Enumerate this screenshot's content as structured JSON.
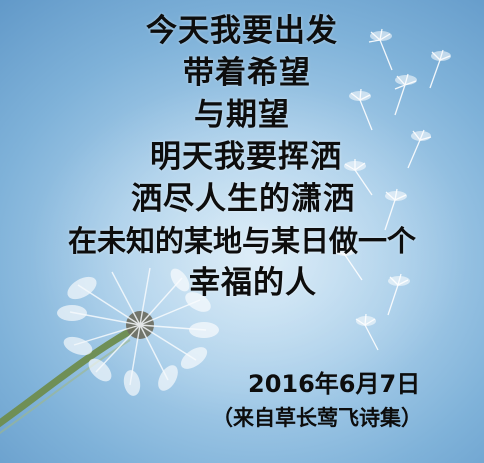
{
  "poem": {
    "lines": [
      "今天我要出发",
      "带着希望",
      "与期望",
      "明天我要挥洒",
      "洒尽人生的潇洒",
      "在未知的某地与某日做一个",
      "幸福的人"
    ]
  },
  "signature": {
    "date": "2016年6月7日",
    "source": "（来自草长莺飞诗集）"
  },
  "background": {
    "sky_color": "#7fb2d9",
    "dandelion_color": "#ffffff"
  }
}
